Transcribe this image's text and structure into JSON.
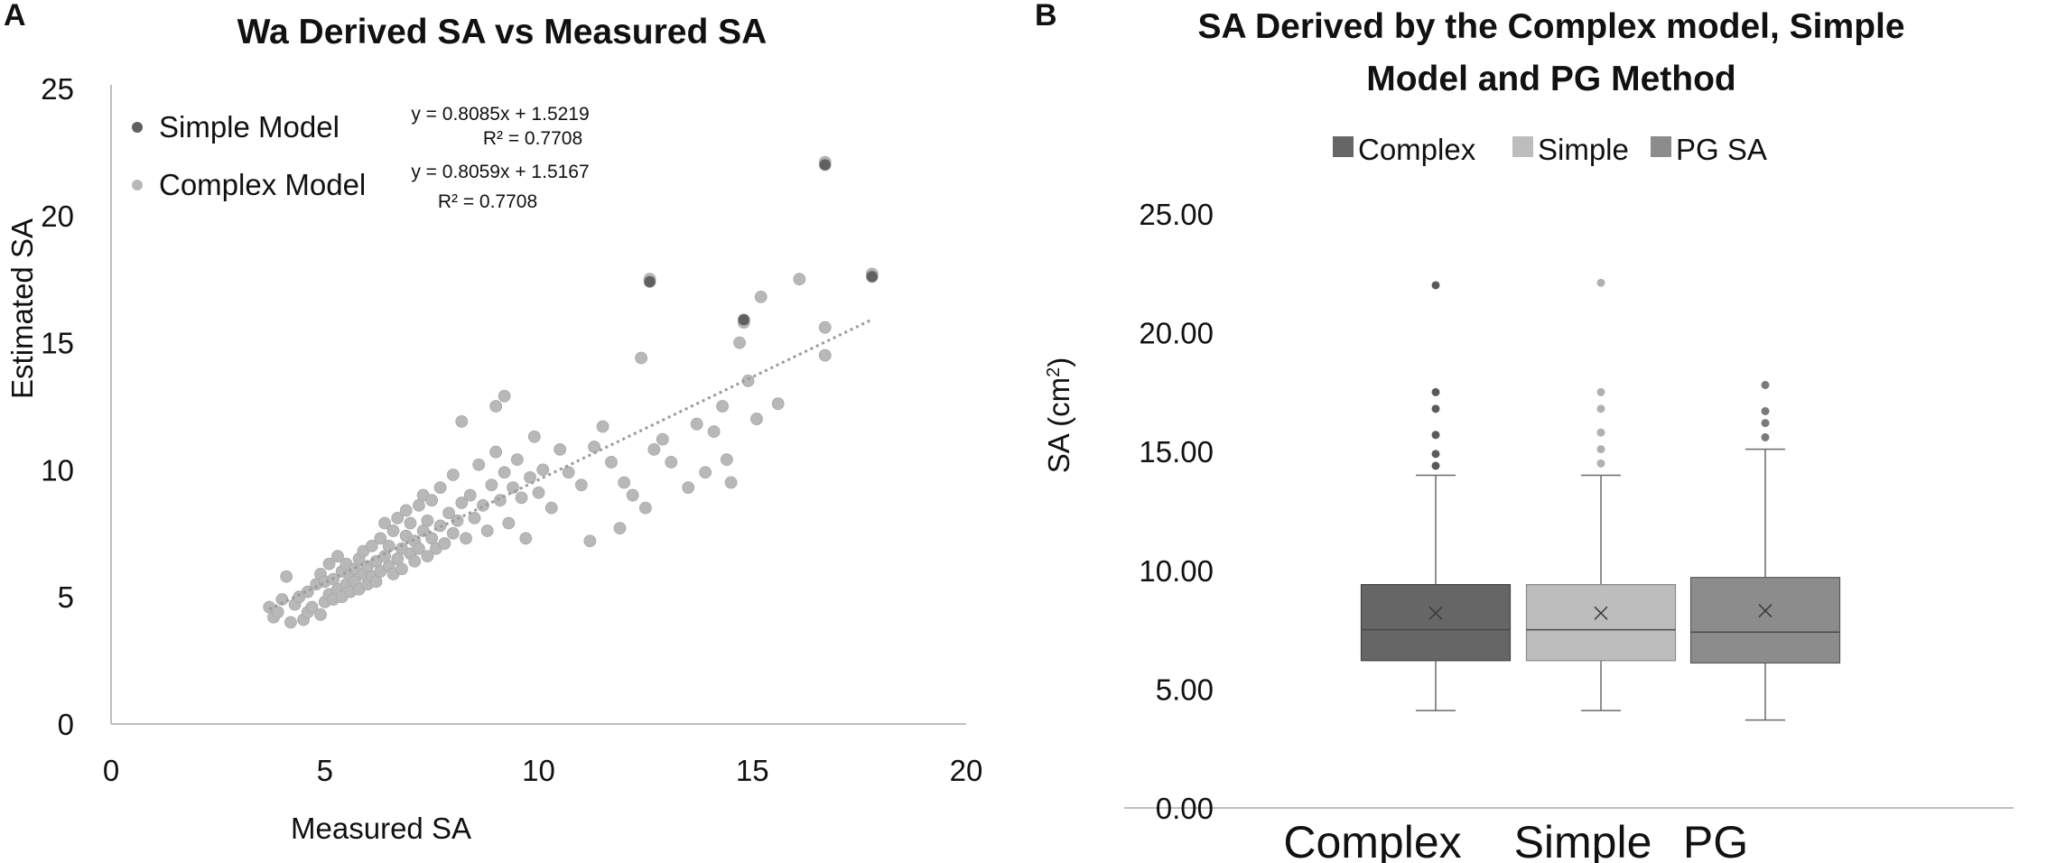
{
  "figure": {
    "panel_a_label": "A",
    "panel_b_label": "B"
  },
  "colors": {
    "simple_dark": "#606060",
    "complex_light": "#b8b8b8",
    "box_complex": "#666666",
    "box_simple": "#bdbdbd",
    "box_pg": "#8c8c8c",
    "trendline": "#9a9a9a",
    "axis": "#bfbfbf"
  },
  "chart_data": [
    {
      "type": "scatter",
      "title": "Wa Derived SA vs Measured SA",
      "xlabel": "Measured SA",
      "ylabel": "Estimated SA",
      "xlim": [
        0,
        20
      ],
      "ylim": [
        0,
        25
      ],
      "x_ticks": [
        "0",
        "5",
        "10",
        "15",
        "20"
      ],
      "y_ticks": [
        "0",
        "5",
        "10",
        "15",
        "20",
        "25"
      ],
      "legend": [
        "Simple Model",
        "Complex Model"
      ],
      "equations": [
        {
          "line1": "y = 0.8085x + 1.5219",
          "line2": "R² = 0.7708"
        },
        {
          "line1": "y = 0.8059x + 1.5167",
          "line2": "R² = 0.7708"
        }
      ],
      "trendline": {
        "slope": 0.8085,
        "intercept": 1.5219,
        "x_range": [
          3.7,
          17.8
        ]
      },
      "series": [
        {
          "name": "Complex Model",
          "points": [
            [
              3.7,
              4.6
            ],
            [
              3.8,
              4.2
            ],
            [
              3.9,
              4.4
            ],
            [
              4.0,
              4.9
            ],
            [
              4.1,
              5.8
            ],
            [
              4.2,
              4.0
            ],
            [
              4.3,
              4.7
            ],
            [
              4.4,
              5.0
            ],
            [
              4.5,
              4.1
            ],
            [
              4.6,
              4.4
            ],
            [
              4.6,
              5.2
            ],
            [
              4.7,
              4.6
            ],
            [
              4.8,
              5.5
            ],
            [
              4.9,
              4.3
            ],
            [
              4.9,
              5.9
            ],
            [
              5.0,
              4.8
            ],
            [
              5.0,
              5.6
            ],
            [
              5.1,
              5.1
            ],
            [
              5.1,
              6.3
            ],
            [
              5.2,
              4.9
            ],
            [
              5.2,
              5.7
            ],
            [
              5.3,
              5.3
            ],
            [
              5.3,
              6.6
            ],
            [
              5.4,
              5.0
            ],
            [
              5.4,
              6.0
            ],
            [
              5.5,
              5.5
            ],
            [
              5.5,
              6.3
            ],
            [
              5.6,
              5.2
            ],
            [
              5.6,
              5.8
            ],
            [
              5.7,
              6.1
            ],
            [
              5.7,
              5.6
            ],
            [
              5.8,
              6.5
            ],
            [
              5.8,
              5.3
            ],
            [
              5.9,
              5.9
            ],
            [
              5.9,
              6.8
            ],
            [
              6.0,
              5.5
            ],
            [
              6.0,
              6.2
            ],
            [
              6.1,
              7.0
            ],
            [
              6.1,
              5.8
            ],
            [
              6.2,
              6.4
            ],
            [
              6.2,
              5.6
            ],
            [
              6.3,
              7.3
            ],
            [
              6.3,
              6.0
            ],
            [
              6.4,
              6.6
            ],
            [
              6.4,
              7.9
            ],
            [
              6.5,
              6.2
            ],
            [
              6.5,
              7.0
            ],
            [
              6.6,
              5.9
            ],
            [
              6.6,
              7.6
            ],
            [
              6.7,
              6.5
            ],
            [
              6.7,
              8.1
            ],
            [
              6.8,
              6.9
            ],
            [
              6.8,
              6.1
            ],
            [
              6.9,
              7.4
            ],
            [
              6.9,
              8.4
            ],
            [
              7.0,
              6.7
            ],
            [
              7.0,
              7.9
            ],
            [
              7.1,
              6.4
            ],
            [
              7.1,
              7.2
            ],
            [
              7.2,
              8.6
            ],
            [
              7.2,
              6.9
            ],
            [
              7.3,
              7.6
            ],
            [
              7.3,
              9.0
            ],
            [
              7.4,
              6.6
            ],
            [
              7.4,
              8.0
            ],
            [
              7.5,
              7.3
            ],
            [
              7.5,
              8.8
            ],
            [
              7.6,
              6.9
            ],
            [
              7.7,
              7.8
            ],
            [
              7.7,
              9.3
            ],
            [
              7.8,
              7.1
            ],
            [
              7.9,
              8.3
            ],
            [
              8.0,
              7.5
            ],
            [
              8.0,
              9.8
            ],
            [
              8.1,
              8.0
            ],
            [
              8.2,
              8.7
            ],
            [
              8.2,
              11.9
            ],
            [
              8.3,
              7.3
            ],
            [
              8.4,
              9.0
            ],
            [
              8.5,
              8.1
            ],
            [
              8.6,
              10.2
            ],
            [
              8.7,
              8.6
            ],
            [
              8.8,
              7.6
            ],
            [
              8.9,
              9.4
            ],
            [
              9.0,
              10.7
            ],
            [
              9.0,
              12.5
            ],
            [
              9.1,
              8.8
            ],
            [
              9.2,
              9.9
            ],
            [
              9.2,
              12.9
            ],
            [
              9.3,
              7.9
            ],
            [
              9.4,
              9.3
            ],
            [
              9.5,
              10.4
            ],
            [
              9.6,
              8.9
            ],
            [
              9.7,
              7.3
            ],
            [
              9.8,
              9.7
            ],
            [
              9.9,
              11.3
            ],
            [
              10.0,
              9.1
            ],
            [
              10.1,
              10.0
            ],
            [
              10.3,
              8.5
            ],
            [
              10.5,
              10.8
            ],
            [
              10.7,
              9.9
            ],
            [
              11.0,
              9.4
            ],
            [
              11.2,
              7.2
            ],
            [
              11.3,
              10.9
            ],
            [
              11.5,
              11.7
            ],
            [
              11.7,
              10.3
            ],
            [
              11.9,
              7.7
            ],
            [
              12.0,
              9.5
            ],
            [
              12.2,
              9.0
            ],
            [
              12.4,
              14.4
            ],
            [
              12.5,
              8.5
            ],
            [
              12.6,
              17.5
            ],
            [
              12.7,
              10.8
            ],
            [
              12.9,
              11.2
            ],
            [
              13.1,
              10.3
            ],
            [
              13.5,
              9.3
            ],
            [
              13.7,
              11.8
            ],
            [
              13.9,
              9.9
            ],
            [
              14.1,
              11.5
            ],
            [
              14.3,
              12.5
            ],
            [
              14.4,
              10.4
            ],
            [
              14.5,
              9.5
            ],
            [
              14.7,
              15.0
            ],
            [
              14.8,
              15.8
            ],
            [
              14.9,
              13.5
            ],
            [
              15.1,
              12.0
            ],
            [
              15.2,
              16.8
            ],
            [
              15.6,
              12.6
            ],
            [
              16.1,
              17.5
            ],
            [
              16.7,
              15.6
            ],
            [
              16.7,
              14.5
            ],
            [
              16.7,
              22.1
            ],
            [
              17.8,
              17.7
            ]
          ]
        },
        {
          "name": "Simple Model",
          "points": [
            [
              16.7,
              22.0
            ],
            [
              12.6,
              17.4
            ],
            [
              17.8,
              17.6
            ],
            [
              14.8,
              15.9
            ]
          ]
        }
      ]
    },
    {
      "type": "box",
      "title_lines": [
        "SA Derived by the Complex model, Simple",
        "Model and PG Method"
      ],
      "ylabel": "SA (cm",
      "ylabel_sup": "2",
      "ylabel_close": ")",
      "ylim": [
        0,
        25
      ],
      "y_ticks": [
        "0.00",
        "5.00",
        "10.00",
        "15.00",
        "20.00",
        "25.00"
      ],
      "categories": [
        "Complex",
        "Simple",
        "PG"
      ],
      "legend": [
        "Complex",
        "Simple",
        "PG SA"
      ],
      "series": [
        {
          "name": "Complex",
          "min": 4.1,
          "q1": 6.2,
          "median": 7.5,
          "mean": 8.2,
          "q3": 9.4,
          "max": 14.0,
          "outliers": [
            14.4,
            14.9,
            15.7,
            16.8,
            17.5,
            22.0
          ]
        },
        {
          "name": "Simple",
          "min": 4.1,
          "q1": 6.2,
          "median": 7.5,
          "mean": 8.2,
          "q3": 9.4,
          "max": 14.0,
          "outliers": [
            14.5,
            15.1,
            15.8,
            16.8,
            17.5,
            22.1
          ]
        },
        {
          "name": "PG SA",
          "min": 3.7,
          "q1": 6.1,
          "median": 7.4,
          "mean": 8.3,
          "q3": 9.7,
          "max": 15.1,
          "outliers": [
            15.6,
            16.2,
            16.7,
            17.8
          ]
        }
      ]
    }
  ]
}
